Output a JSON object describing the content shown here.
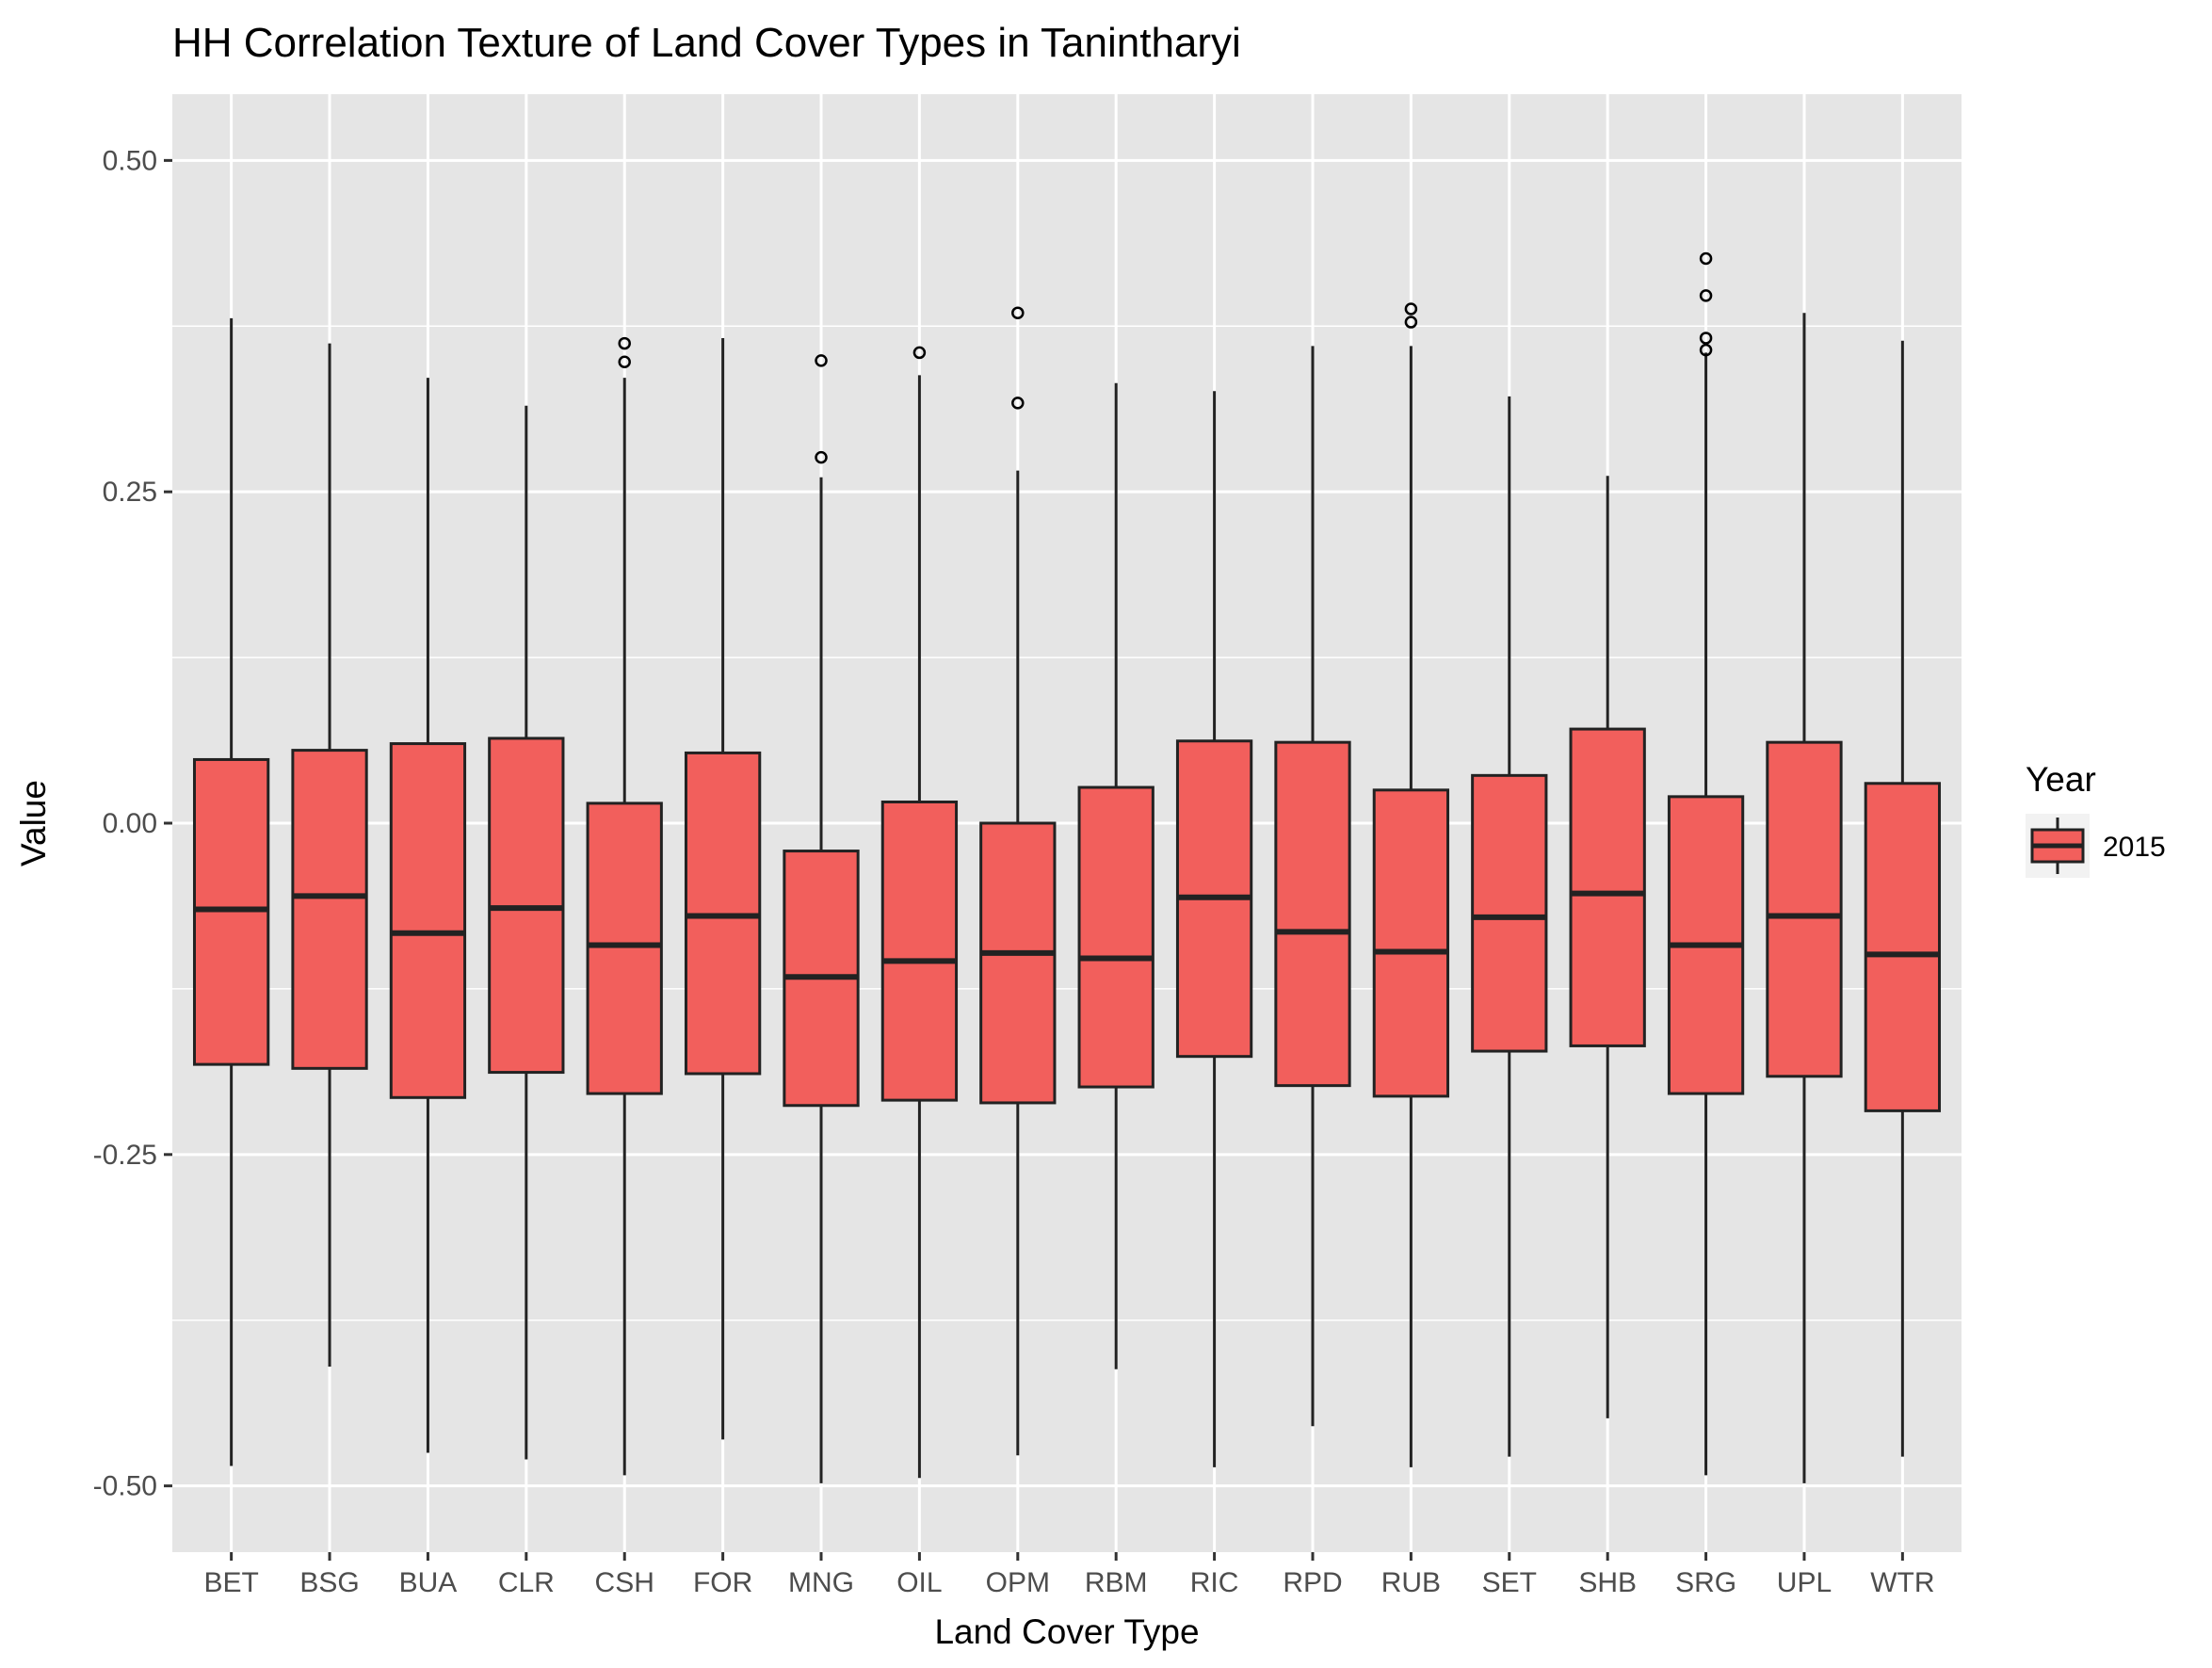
{
  "chart_data": {
    "type": "boxplot",
    "title": "HH Correlation Texture of Land Cover Types in Tanintharyi",
    "xlabel": "Land Cover Type",
    "ylabel": "Value",
    "ylim": [
      -0.55,
      0.55
    ],
    "y_ticks": [
      0.5,
      0.25,
      0.0,
      -0.25,
      -0.5
    ],
    "y_tick_labels": [
      "0.50",
      "0.25",
      "0.00",
      "-0.25",
      "-0.50"
    ],
    "grid": true,
    "legend": {
      "title": "Year",
      "position": "right",
      "entries": [
        {
          "label": "2015",
          "color": "#f25f5c"
        }
      ]
    },
    "colors": {
      "panel": "#e5e5e5",
      "grid": "#ffffff",
      "box_fill": "#f25f5c",
      "box_line": "#222222"
    },
    "categories": [
      "BET",
      "BSG",
      "BUA",
      "CLR",
      "CSH",
      "FOR",
      "MNG",
      "OIL",
      "OPM",
      "RBM",
      "RIC",
      "RPD",
      "RUB",
      "SET",
      "SHB",
      "SRG",
      "UPL",
      "WTR"
    ],
    "series": [
      {
        "name": "2015",
        "boxes": [
          {
            "category": "BET",
            "whisker_low": -0.485,
            "q1": -0.182,
            "median": -0.065,
            "q3": 0.048,
            "whisker_high": 0.381,
            "outliers": []
          },
          {
            "category": "BSG",
            "whisker_low": -0.41,
            "q1": -0.185,
            "median": -0.055,
            "q3": 0.055,
            "whisker_high": 0.362,
            "outliers": []
          },
          {
            "category": "BUA",
            "whisker_low": -0.475,
            "q1": -0.207,
            "median": -0.083,
            "q3": 0.06,
            "whisker_high": 0.336,
            "outliers": []
          },
          {
            "category": "CLR",
            "whisker_low": -0.48,
            "q1": -0.188,
            "median": -0.064,
            "q3": 0.064,
            "whisker_high": 0.315,
            "outliers": []
          },
          {
            "category": "CSH",
            "whisker_low": -0.492,
            "q1": -0.204,
            "median": -0.092,
            "q3": 0.015,
            "whisker_high": 0.336,
            "outliers": [
              0.362,
              0.348
            ]
          },
          {
            "category": "FOR",
            "whisker_low": -0.465,
            "q1": -0.189,
            "median": -0.07,
            "q3": 0.053,
            "whisker_high": 0.366,
            "outliers": []
          },
          {
            "category": "MNG",
            "whisker_low": -0.498,
            "q1": -0.213,
            "median": -0.116,
            "q3": -0.021,
            "whisker_high": 0.261,
            "outliers": [
              0.349,
              0.276
            ]
          },
          {
            "category": "OIL",
            "whisker_low": -0.494,
            "q1": -0.209,
            "median": -0.104,
            "q3": 0.016,
            "whisker_high": 0.338,
            "outliers": [
              0.355
            ]
          },
          {
            "category": "OPM",
            "whisker_low": -0.477,
            "q1": -0.211,
            "median": -0.098,
            "q3": 0.0,
            "whisker_high": 0.266,
            "outliers": [
              0.385,
              0.317
            ]
          },
          {
            "category": "RBM",
            "whisker_low": -0.412,
            "q1": -0.199,
            "median": -0.102,
            "q3": 0.027,
            "whisker_high": 0.332,
            "outliers": []
          },
          {
            "category": "RIC",
            "whisker_low": -0.486,
            "q1": -0.176,
            "median": -0.056,
            "q3": 0.062,
            "whisker_high": 0.326,
            "outliers": []
          },
          {
            "category": "RPD",
            "whisker_low": -0.455,
            "q1": -0.198,
            "median": -0.082,
            "q3": 0.061,
            "whisker_high": 0.36,
            "outliers": []
          },
          {
            "category": "RUB",
            "whisker_low": -0.486,
            "q1": -0.206,
            "median": -0.097,
            "q3": 0.025,
            "whisker_high": 0.36,
            "outliers": [
              0.388,
              0.378
            ]
          },
          {
            "category": "SET",
            "whisker_low": -0.478,
            "q1": -0.172,
            "median": -0.071,
            "q3": 0.036,
            "whisker_high": 0.322,
            "outliers": []
          },
          {
            "category": "SHB",
            "whisker_low": -0.449,
            "q1": -0.168,
            "median": -0.053,
            "q3": 0.071,
            "whisker_high": 0.262,
            "outliers": []
          },
          {
            "category": "SRG",
            "whisker_low": -0.492,
            "q1": -0.204,
            "median": -0.092,
            "q3": 0.02,
            "whisker_high": 0.355,
            "outliers": [
              0.426,
              0.398,
              0.366,
              0.357
            ]
          },
          {
            "category": "UPL",
            "whisker_low": -0.498,
            "q1": -0.191,
            "median": -0.07,
            "q3": 0.061,
            "whisker_high": 0.385,
            "outliers": []
          },
          {
            "category": "WTR",
            "whisker_low": -0.478,
            "q1": -0.217,
            "median": -0.099,
            "q3": 0.03,
            "whisker_high": 0.364,
            "outliers": []
          }
        ]
      }
    ]
  }
}
